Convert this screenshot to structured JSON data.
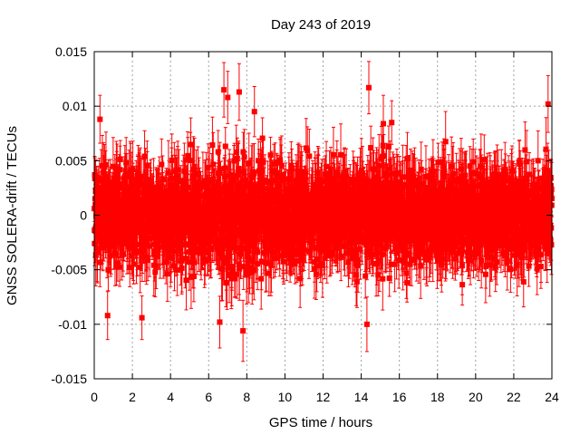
{
  "chart_data": {
    "type": "scatter",
    "title": "Day 243 of 2019",
    "xlabel": "GPS time / hours",
    "ylabel": "GNSS SOLERA-drift / TECUs",
    "xlim": [
      0,
      24
    ],
    "ylim": [
      -0.015,
      0.015
    ],
    "x_ticks": [
      0,
      2,
      4,
      6,
      8,
      10,
      12,
      14,
      16,
      18,
      20,
      22,
      24
    ],
    "x_tick_labels": [
      "0",
      "2",
      "4",
      "6",
      "8",
      "10",
      "12",
      "14",
      "16",
      "18",
      "20",
      "22",
      "24"
    ],
    "y_ticks": [
      -0.015,
      -0.01,
      -0.005,
      0,
      0.005,
      0.01,
      0.015
    ],
    "y_tick_labels": [
      "-0.015",
      "-0.01",
      "-0.005",
      "0",
      "0.005",
      "0.01",
      "0.015"
    ],
    "grid": true,
    "series_color": "#ff0000",
    "marker": "square-with-vertical-error-bars",
    "approx_point_count": 2880,
    "sampling_interval_hours": 0.00833,
    "notable_points": [
      {
        "x": 0.3,
        "y": 0.0088,
        "err": 0.0022
      },
      {
        "x": 0.7,
        "y": -0.0092,
        "err": 0.0022
      },
      {
        "x": 2.5,
        "y": -0.0094,
        "err": 0.002
      },
      {
        "x": 6.8,
        "y": 0.0115,
        "err": 0.0025
      },
      {
        "x": 7.0,
        "y": 0.0108,
        "err": 0.0024
      },
      {
        "x": 7.6,
        "y": 0.0113,
        "err": 0.0026
      },
      {
        "x": 7.8,
        "y": -0.0106,
        "err": 0.0028
      },
      {
        "x": 8.4,
        "y": 0.0095,
        "err": 0.0023
      },
      {
        "x": 14.4,
        "y": 0.0117,
        "err": 0.0024
      },
      {
        "x": 14.3,
        "y": -0.01,
        "err": 0.0025
      },
      {
        "x": 15.6,
        "y": 0.0085,
        "err": 0.002
      },
      {
        "x": 23.8,
        "y": 0.0102,
        "err": 0.0026
      }
    ],
    "envelope": [
      {
        "x": 0,
        "std": 0.0028
      },
      {
        "x": 2,
        "std": 0.0028
      },
      {
        "x": 4,
        "std": 0.0028
      },
      {
        "x": 6,
        "std": 0.0031
      },
      {
        "x": 7,
        "std": 0.0036
      },
      {
        "x": 8,
        "std": 0.0035
      },
      {
        "x": 10,
        "std": 0.003
      },
      {
        "x": 12,
        "std": 0.0028
      },
      {
        "x": 14,
        "std": 0.0031
      },
      {
        "x": 16,
        "std": 0.0028
      },
      {
        "x": 18,
        "std": 0.0027
      },
      {
        "x": 20,
        "std": 0.0028
      },
      {
        "x": 22,
        "std": 0.0028
      },
      {
        "x": 24,
        "std": 0.003
      }
    ]
  }
}
